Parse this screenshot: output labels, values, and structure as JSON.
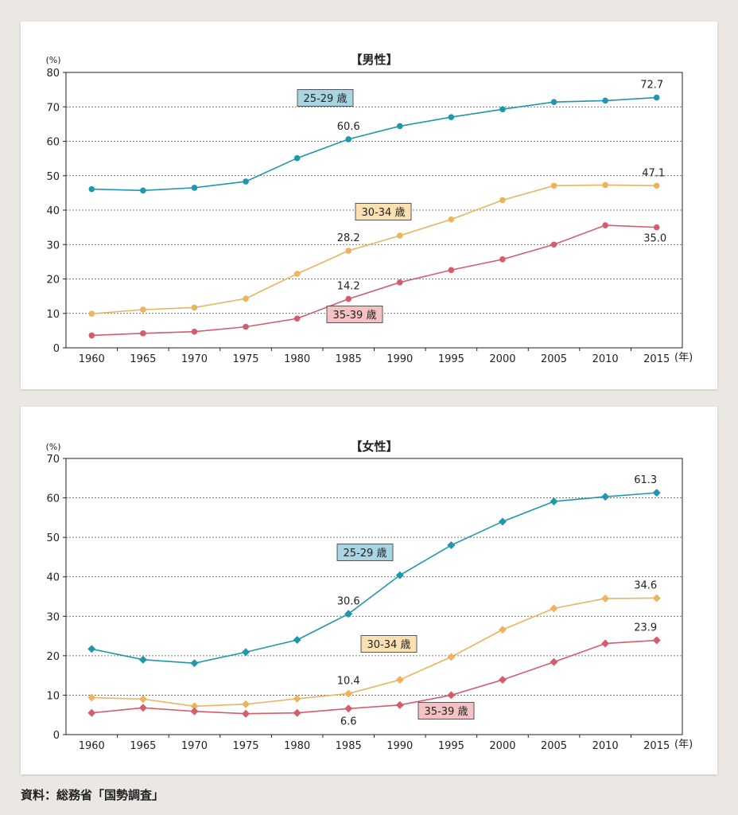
{
  "source": "資料：総務省「国勢調査」",
  "colors": {
    "age_25_29": "#1f97ae",
    "age_30_34": "#edb35f",
    "age_35_39": "#d55c6b",
    "label_bg_25_29": "#a9d4e2",
    "label_bg_30_34": "#fbe0b2",
    "label_bg_35_39": "#f4c2c2"
  },
  "chart_data": [
    {
      "type": "line",
      "title": "【男性】",
      "ylabel": "(%)",
      "xunit": "(年)",
      "ylim": [
        0,
        80
      ],
      "yticks": [
        "0",
        "10",
        "20",
        "30",
        "40",
        "50",
        "60",
        "70",
        "80"
      ],
      "categories": [
        "1960",
        "1965",
        "1970",
        "1975",
        "1980",
        "1985",
        "1990",
        "1995",
        "2000",
        "2005",
        "2010",
        "2015"
      ],
      "marker": "circle",
      "grid": true,
      "series": [
        {
          "name": "25-29 歳",
          "values": [
            46.1,
            45.7,
            46.5,
            48.3,
            55.1,
            60.6,
            64.4,
            67.0,
            69.3,
            71.4,
            71.8,
            72.7
          ]
        },
        {
          "name": "30-34 歳",
          "values": [
            9.9,
            11.1,
            11.7,
            14.3,
            21.5,
            28.2,
            32.6,
            37.3,
            42.9,
            47.1,
            47.3,
            47.1
          ]
        },
        {
          "name": "35-39 歳",
          "values": [
            3.6,
            4.2,
            4.7,
            6.1,
            8.5,
            14.2,
            19.0,
            22.6,
            25.7,
            30.0,
            35.6,
            35.0
          ]
        }
      ],
      "annotations": [
        {
          "series": 0,
          "index": 5,
          "text": "60.6"
        },
        {
          "series": 0,
          "index": 11,
          "text": "72.7"
        },
        {
          "series": 1,
          "index": 5,
          "text": "28.2"
        },
        {
          "series": 1,
          "index": 11,
          "text": "47.1"
        },
        {
          "series": 2,
          "index": 5,
          "text": "14.2"
        },
        {
          "series": 2,
          "index": 11,
          "text": "35.0"
        }
      ]
    },
    {
      "type": "line",
      "title": "【女性】",
      "ylabel": "(%)",
      "xunit": "(年)",
      "ylim": [
        0,
        70
      ],
      "yticks": [
        "0",
        "10",
        "20",
        "30",
        "40",
        "50",
        "60",
        "70"
      ],
      "categories": [
        "1960",
        "1965",
        "1970",
        "1975",
        "1980",
        "1985",
        "1990",
        "1995",
        "2000",
        "2005",
        "2010",
        "2015"
      ],
      "marker": "diamond",
      "grid": true,
      "series": [
        {
          "name": "25-29 歳",
          "values": [
            21.7,
            19.0,
            18.1,
            20.9,
            24.0,
            30.6,
            40.4,
            48.0,
            54.0,
            59.1,
            60.3,
            61.3
          ]
        },
        {
          "name": "30-34 歳",
          "values": [
            9.4,
            9.0,
            7.2,
            7.7,
            9.1,
            10.4,
            13.9,
            19.7,
            26.6,
            32.0,
            34.5,
            34.6
          ]
        },
        {
          "name": "35-39 歳",
          "values": [
            5.5,
            6.8,
            5.9,
            5.3,
            5.5,
            6.6,
            7.5,
            10.0,
            13.9,
            18.4,
            23.1,
            23.9
          ]
        }
      ],
      "annotations": [
        {
          "series": 0,
          "index": 5,
          "text": "30.6"
        },
        {
          "series": 0,
          "index": 11,
          "text": "61.3"
        },
        {
          "series": 1,
          "index": 5,
          "text": "10.4"
        },
        {
          "series": 1,
          "index": 11,
          "text": "34.6"
        },
        {
          "series": 2,
          "index": 5,
          "text": "6.6"
        },
        {
          "series": 2,
          "index": 11,
          "text": "23.9"
        }
      ]
    }
  ]
}
